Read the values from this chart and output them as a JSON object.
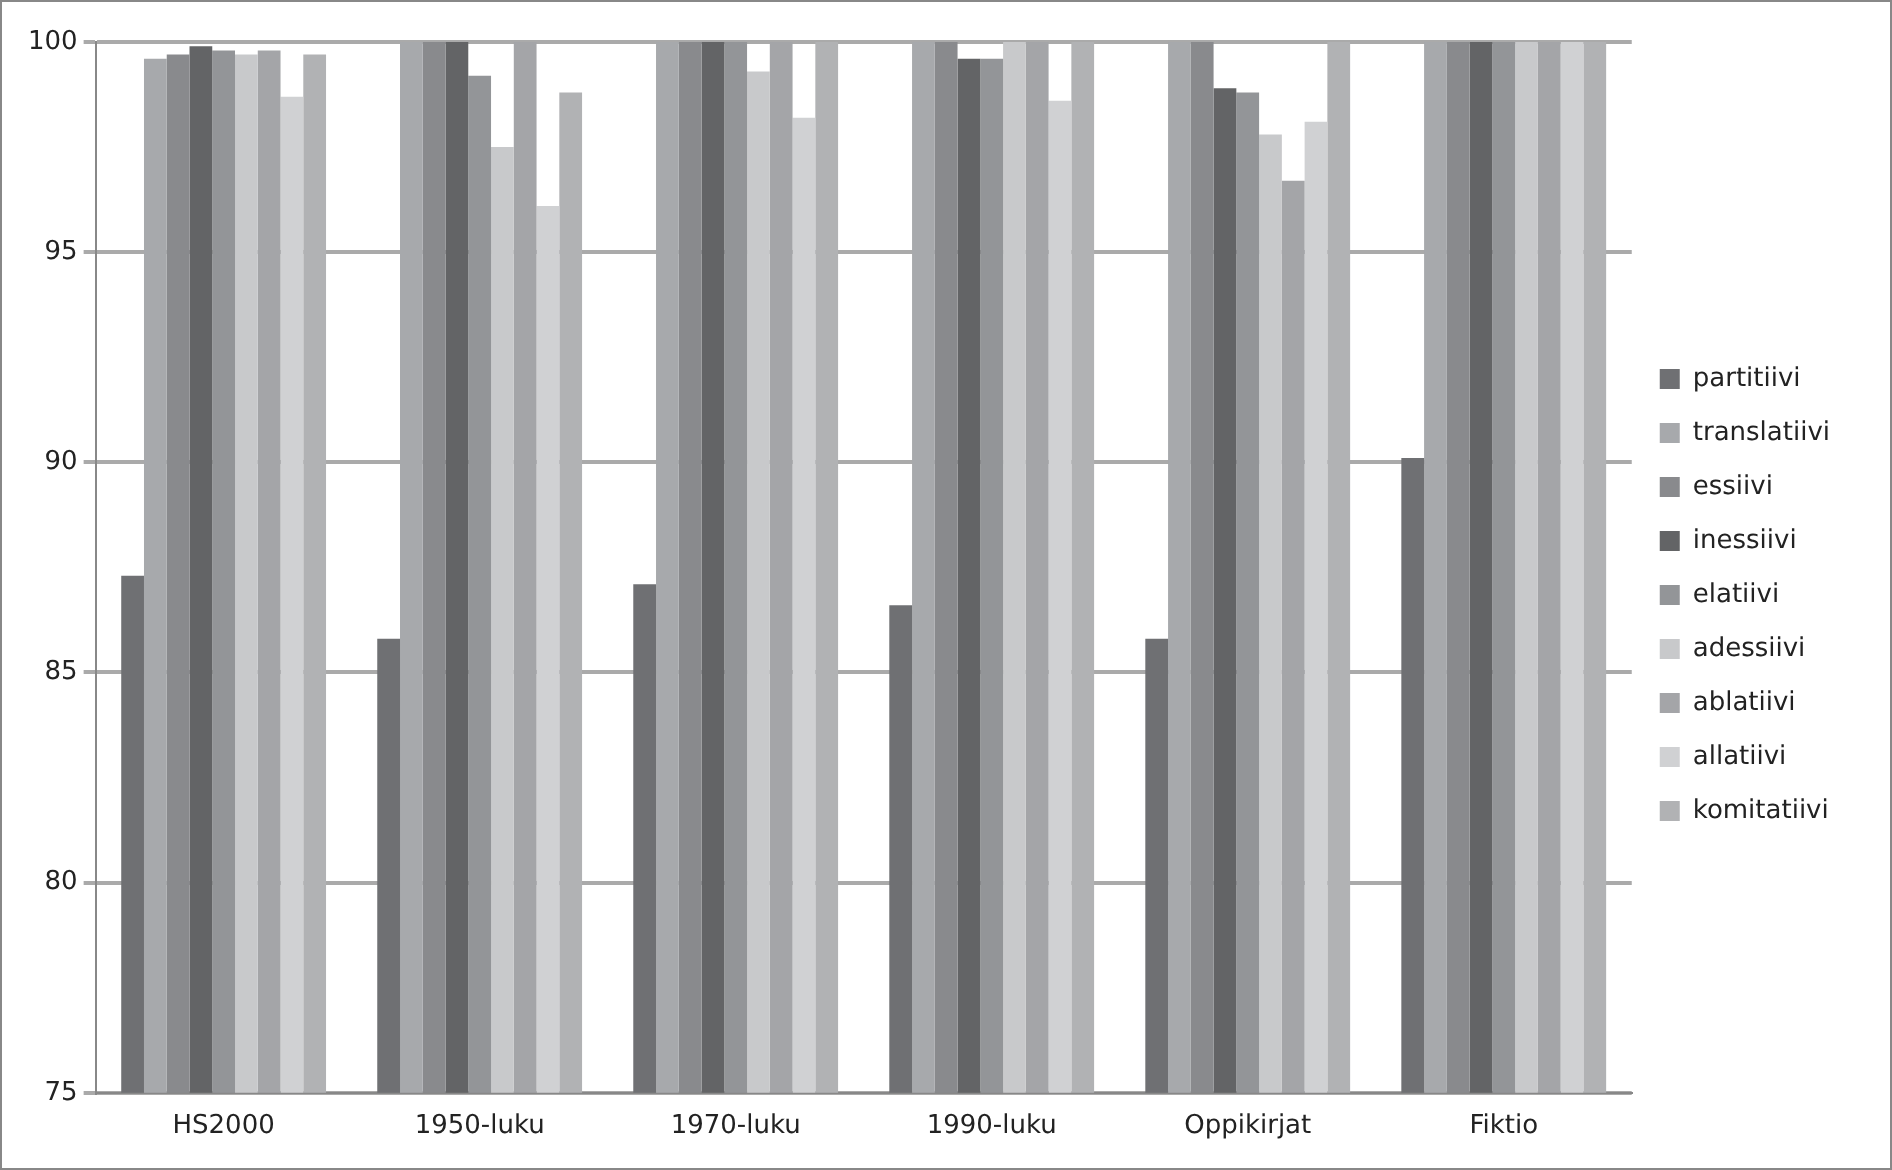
{
  "chart_data": {
    "type": "bar",
    "categories": [
      "HS2000",
      "1950-luku",
      "1970-luku",
      "1990-luku",
      "Oppikirjat",
      "Fiktio"
    ],
    "series": [
      {
        "name": "partitiivi",
        "color": "#6f7073",
        "values": [
          87.3,
          85.8,
          87.1,
          86.6,
          85.8,
          90.1
        ]
      },
      {
        "name": "translatiivi",
        "color": "#a7a9ac",
        "values": [
          99.6,
          100,
          100,
          100,
          100,
          100
        ]
      },
      {
        "name": "essiivi",
        "color": "#898a8d",
        "values": [
          99.7,
          100,
          100,
          100,
          100,
          100
        ]
      },
      {
        "name": "inessiivi",
        "color": "#636466",
        "values": [
          99.9,
          100,
          100,
          99.6,
          98.9,
          100
        ]
      },
      {
        "name": "elatiivi",
        "color": "#939598",
        "values": [
          99.8,
          99.2,
          100,
          99.6,
          98.8,
          100
        ]
      },
      {
        "name": "adessiivi",
        "color": "#c8c9cb",
        "values": [
          99.7,
          97.5,
          99.3,
          100,
          97.8,
          100
        ]
      },
      {
        "name": "ablatiivi",
        "color": "#a4a5a8",
        "values": [
          99.8,
          100,
          100,
          100,
          96.7,
          100
        ]
      },
      {
        "name": "allatiivi",
        "color": "#d0d1d3",
        "values": [
          98.7,
          96.1,
          98.2,
          98.6,
          98.1,
          100
        ]
      },
      {
        "name": "komitatiivi",
        "color": "#b1b2b4",
        "values": [
          99.7,
          98.8,
          100,
          100,
          100,
          100
        ]
      }
    ],
    "ylim": [
      75,
      100
    ],
    "yticks": [
      75,
      80,
      85,
      90,
      95,
      100
    ],
    "grid": "y",
    "legend": "right"
  }
}
